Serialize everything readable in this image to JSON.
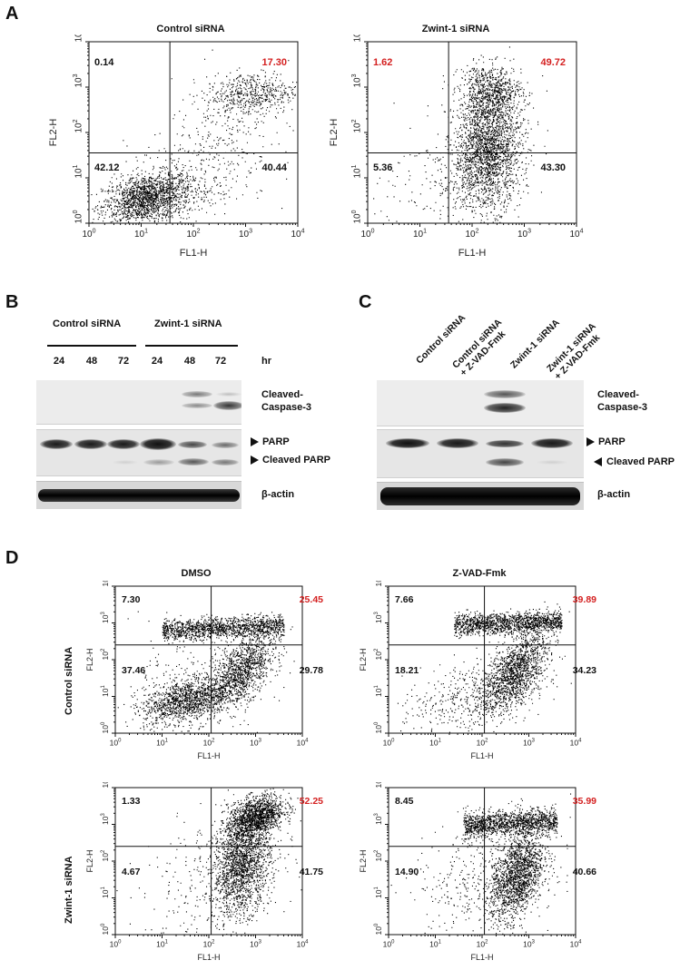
{
  "panels": {
    "A": {
      "letter": "A",
      "plots": [
        {
          "title": "Control siRNA",
          "q": [
            "0.14",
            "17.30",
            "42.12",
            "40.44"
          ],
          "highlight": [
            false,
            true,
            false,
            false
          ]
        },
        {
          "title": "Zwint-1 siRNA",
          "q": [
            "1.62",
            "49.72",
            "5.36",
            "43.30"
          ],
          "highlight": [
            true,
            true,
            false,
            false
          ]
        }
      ]
    },
    "B": {
      "letter": "B",
      "groups": [
        "Control siRNA",
        "Zwint-1 siRNA"
      ],
      "unit": "hr",
      "timepoints": [
        "24",
        "48",
        "72",
        "24",
        "48",
        "72"
      ],
      "bands": [
        "Cleaved-\nCaspase-3",
        "PARP",
        "Cleaved PARP",
        "β-actin"
      ]
    },
    "C": {
      "letter": "C",
      "lanes": [
        "Control siRNA",
        "Control siRNA\n+ Z-VAD-Fmk",
        "Zwint-1 siRNA",
        "Zwint-1 siRNA\n+ Z-VAD-Fmk"
      ],
      "bands": [
        "Cleaved-\nCaspase-3",
        "PARP",
        "Cleaved PARP",
        "β-actin"
      ]
    },
    "D": {
      "letter": "D",
      "col_titles": [
        "DMSO",
        "Z-VAD-Fmk"
      ],
      "row_titles": [
        "Control siRNA",
        "Zwint-1 siRNA"
      ],
      "plots": [
        {
          "q": [
            "7.30",
            "25.45",
            "37.46",
            "29.78"
          ]
        },
        {
          "q": [
            "7.66",
            "39.89",
            "18.21",
            "34.23"
          ]
        },
        {
          "q": [
            "1.33",
            "52.25",
            "4.67",
            "41.75"
          ]
        },
        {
          "q": [
            "8.45",
            "35.99",
            "14.90",
            "40.66"
          ]
        }
      ]
    }
  },
  "axes": {
    "x_label": "FL1-H",
    "y_label": "FL2-H",
    "tick_base": "10",
    "tick_exps": [
      "0",
      "1",
      "2",
      "3",
      "4"
    ]
  },
  "colors": {
    "highlight": "#d42020",
    "text": "#111111"
  }
}
